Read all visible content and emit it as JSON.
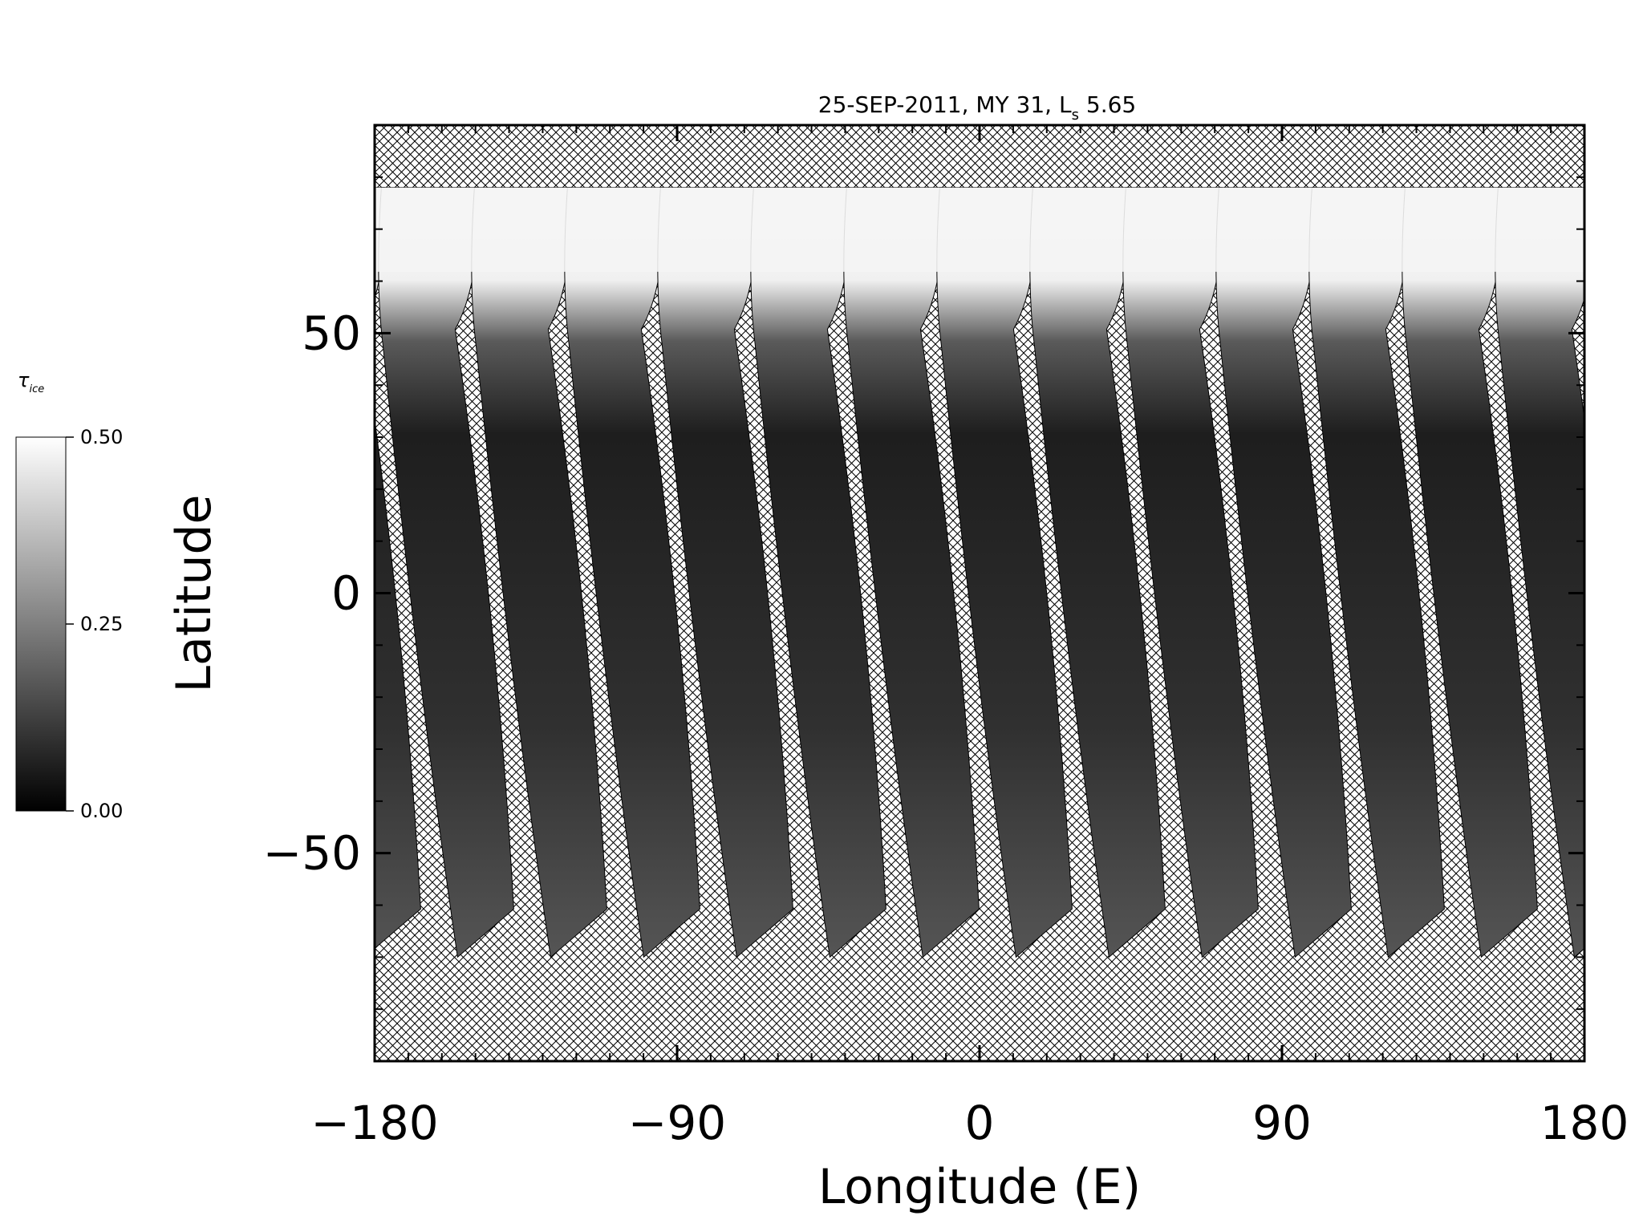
{
  "chart_data": {
    "type": "heatmap",
    "title_main": "25-SEP-2011, MY 31,  L",
    "title_sub": "s",
    "title_value": " 5.65",
    "xlabel": "Longitude (E)",
    "ylabel": "Latitude",
    "xlim": [
      -180,
      180
    ],
    "ylim": [
      -90,
      90
    ],
    "xticks": [
      -180,
      -90,
      0,
      90,
      180
    ],
    "xtick_labels": [
      "−180",
      "−90",
      "0",
      "90",
      "180"
    ],
    "yticks": [
      50,
      0,
      -50
    ],
    "ytick_labels": [
      "50",
      "0",
      "−50"
    ],
    "colorbar": {
      "symbol": "τ",
      "subscript": "ice",
      "min": 0.0,
      "max": 0.5,
      "ticks": [
        0.5,
        0.25,
        0.0
      ],
      "tick_labels": [
        "0.50",
        "0.25",
        "0.00"
      ],
      "colormap": "grayscale"
    },
    "coverage": {
      "no_data_pattern": "crosshatch",
      "swath_count": 13,
      "swath_north_lat": 78,
      "swath_south_lat": -70,
      "north_cap_lat": 60,
      "north_cap_tau": 0.5,
      "typical_swath_tau": 0.08
    }
  },
  "colors": {
    "background": "#ffffff",
    "hatch": "#000000",
    "swath_dark": "#2a2a2a",
    "cap": "#f4f4f4"
  }
}
